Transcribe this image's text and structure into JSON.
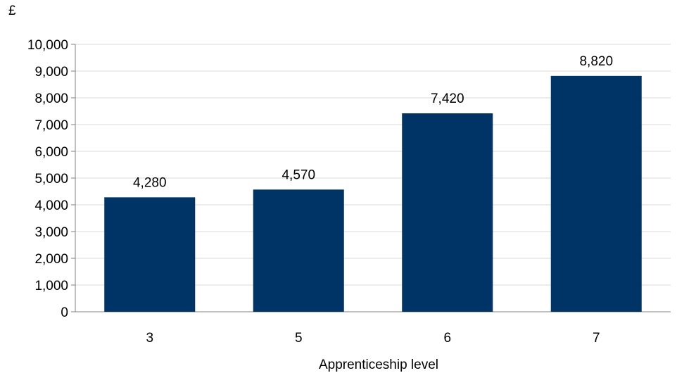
{
  "chart_data": {
    "type": "bar",
    "categories": [
      "3",
      "5",
      "6",
      "7"
    ],
    "values": [
      4280,
      4570,
      7420,
      8820
    ],
    "value_labels": [
      "4,280",
      "4,570",
      "7,420",
      "8,820"
    ],
    "title": "",
    "unit_label": "£",
    "xlabel": "Apprenticeship level",
    "ylabel": "",
    "ylim": [
      0,
      10000
    ],
    "yticks": [
      0,
      1000,
      2000,
      3000,
      4000,
      5000,
      6000,
      7000,
      8000,
      9000,
      10000
    ],
    "ytick_labels": [
      "0",
      "1,000",
      "2,000",
      "3,000",
      "4,000",
      "5,000",
      "6,000",
      "7,000",
      "8,000",
      "9,000",
      "10,000"
    ],
    "grid": true,
    "legend": "none",
    "bar_color": "#003366",
    "grid_color": "#d9d9d9",
    "axis_color": "#808080"
  }
}
